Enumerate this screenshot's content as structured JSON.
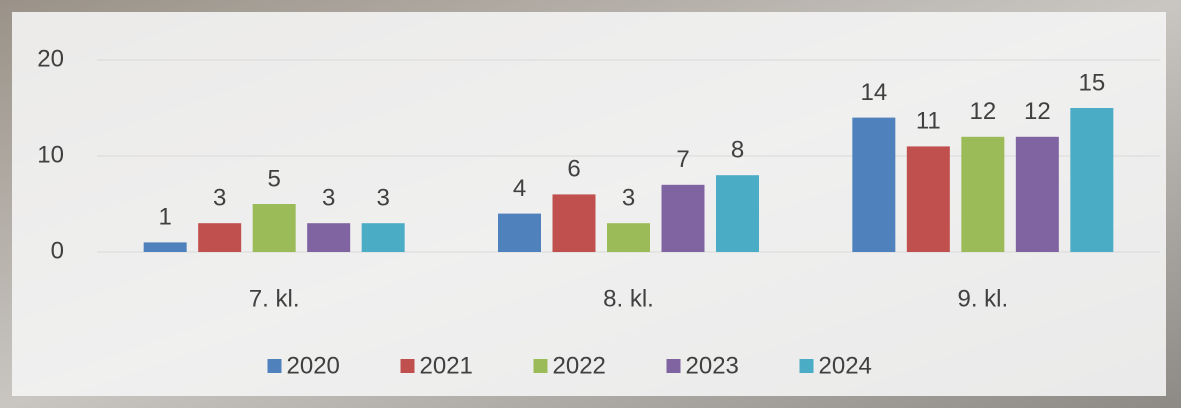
{
  "chart_data": {
    "type": "bar",
    "categories": [
      "7. kl.",
      "8. kl.",
      "9. kl."
    ],
    "series": [
      {
        "name": "2020",
        "color": "#4f81bd",
        "values": [
          1,
          4,
          14
        ]
      },
      {
        "name": "2021",
        "color": "#c0504d",
        "values": [
          3,
          6,
          11
        ]
      },
      {
        "name": "2022",
        "color": "#9bbb59",
        "values": [
          5,
          3,
          12
        ]
      },
      {
        "name": "2023",
        "color": "#8064a2",
        "values": [
          3,
          7,
          12
        ]
      },
      {
        "name": "2024",
        "color": "#4bacc6",
        "values": [
          3,
          8,
          15
        ]
      }
    ],
    "ylim": [
      0,
      20
    ],
    "yticks": [
      0,
      10,
      20
    ],
    "grid": true,
    "legend": "bottom"
  }
}
